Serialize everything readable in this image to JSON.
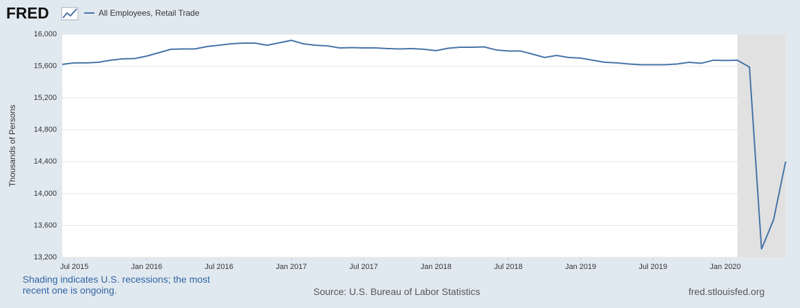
{
  "chart_data": {
    "type": "line",
    "logo": "FRED",
    "ylabel": "Thousands of Persons",
    "note": "Shading indicates U.S. recessions; the most recent one is ongoing.",
    "source": "Source: U.S. Bureau of Labor Statistics",
    "site": "fred.stlouisfed.org",
    "x": [
      "2015-06",
      "2015-07",
      "2015-08",
      "2015-09",
      "2015-10",
      "2015-11",
      "2015-12",
      "2016-01",
      "2016-02",
      "2016-03",
      "2016-04",
      "2016-05",
      "2016-06",
      "2016-07",
      "2016-08",
      "2016-09",
      "2016-10",
      "2016-11",
      "2016-12",
      "2017-01",
      "2017-02",
      "2017-03",
      "2017-04",
      "2017-05",
      "2017-06",
      "2017-07",
      "2017-08",
      "2017-09",
      "2017-10",
      "2017-11",
      "2017-12",
      "2018-01",
      "2018-02",
      "2018-03",
      "2018-04",
      "2018-05",
      "2018-06",
      "2018-07",
      "2018-08",
      "2018-09",
      "2018-10",
      "2018-11",
      "2018-12",
      "2019-01",
      "2019-02",
      "2019-03",
      "2019-04",
      "2019-05",
      "2019-06",
      "2019-07",
      "2019-08",
      "2019-09",
      "2019-10",
      "2019-11",
      "2019-12",
      "2020-01",
      "2020-02",
      "2020-03",
      "2020-04",
      "2020-05",
      "2020-06"
    ],
    "series": [
      {
        "name": "All Employees, Retail Trade",
        "color": "#4572a7",
        "values": [
          15622,
          15640,
          15640,
          15648,
          15674,
          15691,
          15695,
          15725,
          15768,
          15811,
          15815,
          15815,
          15845,
          15862,
          15880,
          15888,
          15888,
          15862,
          15893,
          15923,
          15880,
          15862,
          15854,
          15828,
          15832,
          15828,
          15828,
          15820,
          15815,
          15820,
          15811,
          15794,
          15824,
          15837,
          15837,
          15841,
          15802,
          15790,
          15790,
          15751,
          15708,
          15734,
          15708,
          15700,
          15674,
          15648,
          15640,
          15626,
          15618,
          15618,
          15618,
          15626,
          15648,
          15635,
          15674,
          15670,
          15674,
          15588,
          13303,
          13672,
          14402
        ]
      }
    ],
    "xlim": [
      "2015-06",
      "2020-06"
    ],
    "xticks": [
      {
        "value": "2015-07",
        "label": "Jul 2015"
      },
      {
        "value": "2016-01",
        "label": "Jan 2016"
      },
      {
        "value": "2016-07",
        "label": "Jul 2016"
      },
      {
        "value": "2017-01",
        "label": "Jan 2017"
      },
      {
        "value": "2017-07",
        "label": "Jul 2017"
      },
      {
        "value": "2018-01",
        "label": "Jan 2018"
      },
      {
        "value": "2018-07",
        "label": "Jul 2018"
      },
      {
        "value": "2019-01",
        "label": "Jan 2019"
      },
      {
        "value": "2019-07",
        "label": "Jul 2019"
      },
      {
        "value": "2020-01",
        "label": "Jan 2020"
      }
    ],
    "ylim": [
      13200,
      16000
    ],
    "yticks": [
      {
        "value": 13200,
        "label": "13,200"
      },
      {
        "value": 13600,
        "label": "13,600"
      },
      {
        "value": 14000,
        "label": "14,000"
      },
      {
        "value": 14400,
        "label": "14,400"
      },
      {
        "value": 14800,
        "label": "14,800"
      },
      {
        "value": 15200,
        "label": "15,200"
      },
      {
        "value": 15600,
        "label": "15,600"
      },
      {
        "value": 16000,
        "label": "16,000"
      }
    ],
    "grid": true,
    "recession": {
      "start": "2020-02",
      "end": "2020-06"
    }
  }
}
